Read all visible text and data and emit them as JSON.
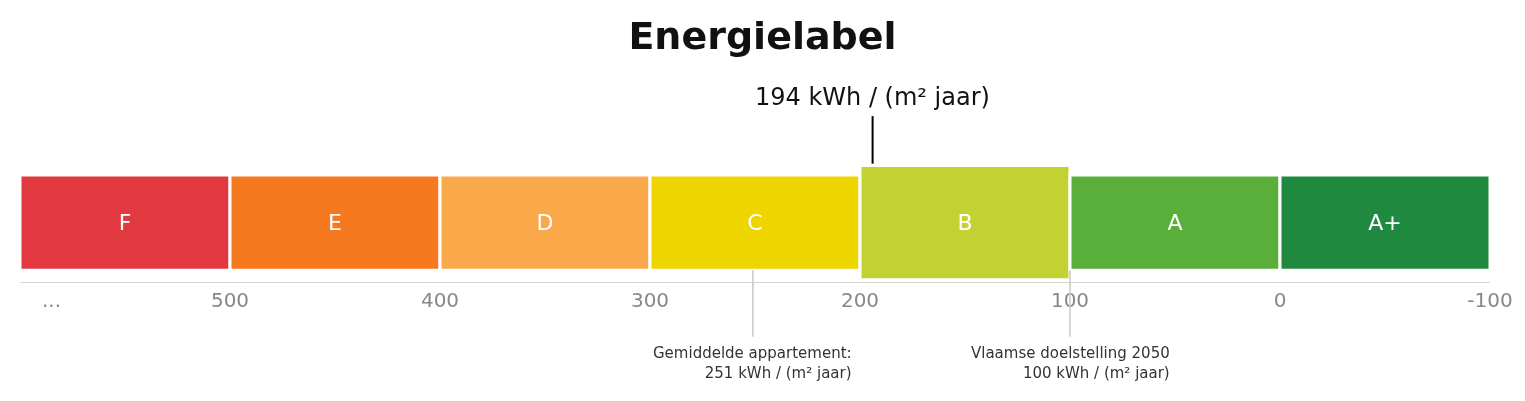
{
  "chart_data": {
    "type": "bar",
    "orientation": "horizontal",
    "stacked": false,
    "title": "Energielabel",
    "categories": [
      null
    ],
    "tick_labels": "x",
    "xlim": [
      600,
      -100
    ],
    "xticks": [
      {
        "value": 585,
        "label": "..."
      },
      500,
      400,
      300,
      200,
      100,
      0,
      -100
    ],
    "series": [
      {
        "name": "F",
        "color": "#e2383f",
        "values": [
          -100
        ],
        "base": [
          600
        ]
      },
      {
        "name": "E",
        "color": "#f7791f",
        "values": [
          -100
        ],
        "base": [
          500
        ]
      },
      {
        "name": "D",
        "color": "#f9a94a",
        "values": [
          -100
        ],
        "base": [
          400
        ]
      },
      {
        "name": "C",
        "color": "#eed500",
        "values": [
          -100
        ],
        "base": [
          300
        ]
      },
      {
        "name": "B",
        "color": "#c3d232",
        "values": [
          -100
        ],
        "base": [
          200
        ]
      },
      {
        "name": "A",
        "color": "#5aae3a",
        "values": [
          -100
        ],
        "base": [
          100
        ]
      },
      {
        "name": "A+",
        "color": "#1f8a3f",
        "values": [
          -100
        ],
        "base": [
          0
        ]
      }
    ],
    "ref_lines": [
      {
        "axis": "x",
        "value": 194,
        "label": "194 kWh / (m² jaar)",
        "color": "#000000"
      },
      {
        "axis": "x",
        "value": 251,
        "label": "Gemiddelde appartement:\n251 kWh / (m² jaar)",
        "color": "#c8c8c8"
      },
      {
        "axis": "x",
        "value": 100,
        "label": "Vlaamse doelstelling 2050\n100 kWh / (m² jaar)",
        "color": "#c8c8c8"
      }
    ]
  }
}
